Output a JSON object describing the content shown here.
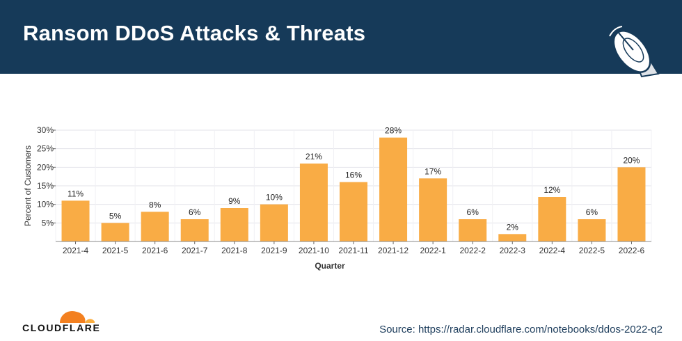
{
  "header": {
    "title": "Ransom DDoS Attacks & Threats",
    "background_color": "#163a59",
    "icon": "satellite-dish-icon"
  },
  "chart_data": {
    "type": "bar",
    "title": "",
    "xlabel": "Quarter",
    "ylabel": "Percent of Customers",
    "ylim": [
      0,
      30
    ],
    "yticks": [
      "5%",
      "10%",
      "15%",
      "20%",
      "25%",
      "30%"
    ],
    "grid": true,
    "bar_color": "#f9ac45",
    "categories": [
      "2021-4",
      "2021-5",
      "2021-6",
      "2021-7",
      "2021-8",
      "2021-9",
      "2021-10",
      "2021-11",
      "2021-12",
      "2022-1",
      "2022-2",
      "2022-3",
      "2022-4",
      "2022-5",
      "2022-6"
    ],
    "values": [
      11,
      5,
      8,
      6,
      9,
      10,
      21,
      16,
      28,
      17,
      6,
      2,
      12,
      6,
      20
    ],
    "data_labels": [
      "11%",
      "5%",
      "8%",
      "6%",
      "9%",
      "10%",
      "21%",
      "16%",
      "28%",
      "17%",
      "6%",
      "2%",
      "12%",
      "6%",
      "20%"
    ]
  },
  "footer": {
    "logo_text": "CLOUDFLARE",
    "logo_icon": "cloudflare-cloud-icon",
    "logo_color": "#f38020",
    "source": "Source: https://radar.cloudflare.com/notebooks/ddos-2022-q2"
  }
}
